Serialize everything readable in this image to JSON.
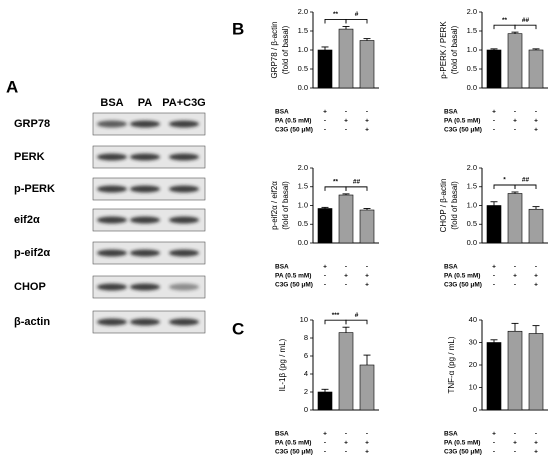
{
  "panels": {
    "a": "A",
    "b": "B",
    "c": "C"
  },
  "blot": {
    "columns": [
      "BSA",
      "PA",
      "PA+C3G"
    ],
    "rows": [
      "GRP78",
      "PERK",
      "p-PERK",
      "eif2α",
      "p-eif2α",
      "CHOP",
      "β-actin"
    ]
  },
  "treatments": {
    "rows": [
      "BSA",
      "PA (0.5 mM)",
      "C3G (50 μM)"
    ],
    "signs": [
      [
        "+",
        "-",
        "-"
      ],
      [
        "-",
        "+",
        "+"
      ],
      [
        "-",
        "-",
        "+"
      ]
    ]
  },
  "chart_data": [
    {
      "type": "bar",
      "ylabel": [
        "GRP78 / β-actin",
        "(fold of basal)"
      ],
      "values": [
        1.0,
        1.55,
        1.25
      ],
      "errors": [
        0.08,
        0.07,
        0.05
      ],
      "colors": [
        "#000000",
        "#a0a0a0",
        "#a0a0a0"
      ],
      "ylim": [
        0,
        2
      ],
      "yticks": [
        {
          "value": 0,
          "label": "0.0"
        },
        0.5,
        {
          "value": 1,
          "label": "1.0"
        },
        1.5,
        {
          "value": 2,
          "label": "2.0"
        }
      ],
      "annotations": [
        "**",
        "#"
      ]
    },
    {
      "type": "bar",
      "ylabel": [
        "p-PERK / PERK",
        "(fold of basal)"
      ],
      "values": [
        1.0,
        1.43,
        1.0
      ],
      "errors": [
        0.03,
        0.04,
        0.03
      ],
      "colors": [
        "#000000",
        "#a0a0a0",
        "#a0a0a0"
      ],
      "ylim": [
        0,
        2
      ],
      "yticks": [
        {
          "value": 0,
          "label": "0.0"
        },
        0.5,
        {
          "value": 1,
          "label": "1.0"
        },
        1.5,
        {
          "value": 2,
          "label": "2.0"
        }
      ],
      "annotations": [
        "**",
        "##"
      ]
    },
    {
      "type": "bar",
      "ylabel": [
        "p-eif2α / eif2α",
        "(fold of basal)"
      ],
      "values": [
        0.92,
        1.28,
        0.88
      ],
      "errors": [
        0.03,
        0.03,
        0.04
      ],
      "colors": [
        "#000000",
        "#a0a0a0",
        "#a0a0a0"
      ],
      "ylim": [
        0,
        2
      ],
      "yticks": [
        {
          "value": 0,
          "label": "0.0"
        },
        0.5,
        {
          "value": 1,
          "label": "1.0"
        },
        1.5,
        {
          "value": 2,
          "label": "2.0"
        }
      ],
      "annotations": [
        "**",
        "##"
      ]
    },
    {
      "type": "bar",
      "ylabel": [
        "CHOP / β-actin",
        "(fold of basal)"
      ],
      "values": [
        1.0,
        1.32,
        0.9
      ],
      "errors": [
        0.1,
        0.04,
        0.07
      ],
      "colors": [
        "#000000",
        "#a0a0a0",
        "#a0a0a0"
      ],
      "ylim": [
        0,
        2
      ],
      "yticks": [
        {
          "value": 0,
          "label": "0.0"
        },
        0.5,
        {
          "value": 1,
          "label": "1.0"
        },
        1.5,
        {
          "value": 2,
          "label": "2.0"
        }
      ],
      "annotations": [
        "*",
        "##"
      ]
    },
    {
      "type": "bar",
      "ylabel": [
        "IL-1β (pg / mL)"
      ],
      "values": [
        2.0,
        8.6,
        5.0
      ],
      "errors": [
        0.3,
        0.6,
        1.1
      ],
      "colors": [
        "#000000",
        "#a0a0a0",
        "#a0a0a0"
      ],
      "ylim": [
        0,
        10
      ],
      "yticks": [
        0,
        2,
        4,
        6,
        8,
        10
      ],
      "annotations": [
        "***",
        "#"
      ]
    },
    {
      "type": "bar",
      "ylabel": [
        "TNF-α (pg / mL)"
      ],
      "values": [
        30,
        35,
        34
      ],
      "errors": [
        1.2,
        3.5,
        3.5
      ],
      "colors": [
        "#000000",
        "#a0a0a0",
        "#a0a0a0"
      ],
      "ylim": [
        0,
        40
      ],
      "yticks": [
        0,
        10,
        20,
        30,
        40
      ],
      "annotations": []
    }
  ]
}
